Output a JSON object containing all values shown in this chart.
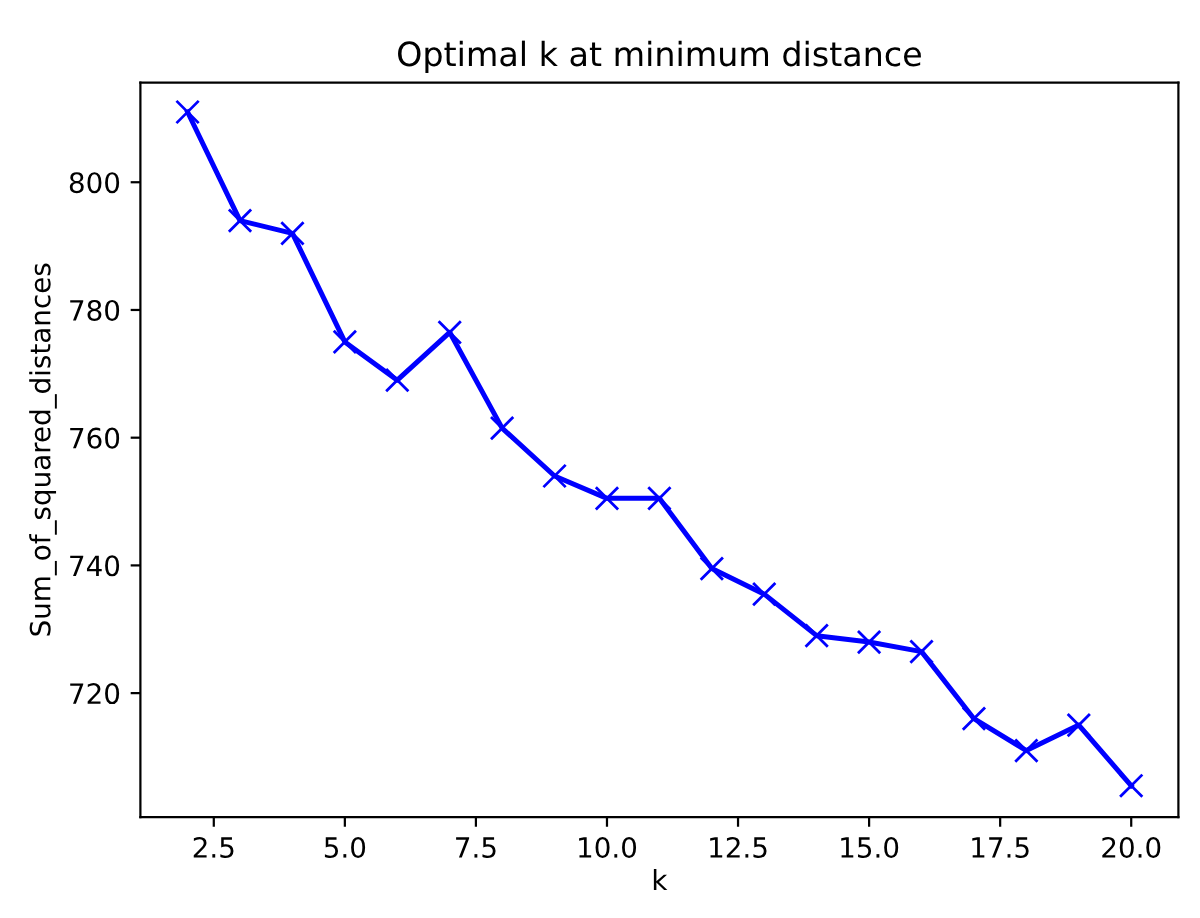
{
  "chart_data": {
    "type": "line",
    "title": "Optimal k at minimum distance",
    "xlabel": "k",
    "ylabel": "Sum_of_squared_distances",
    "x": [
      2,
      3,
      4,
      5,
      6,
      7,
      8,
      9,
      10,
      11,
      12,
      13,
      14,
      15,
      16,
      17,
      18,
      19,
      20
    ],
    "series": [
      {
        "color": "#0000ff",
        "values": [
          811,
          794,
          792,
          775,
          769,
          776.5,
          761.5,
          754,
          750.5,
          750.5,
          739.5,
          735.5,
          729,
          728,
          726.5,
          716,
          711,
          715,
          705.5
        ]
      }
    ],
    "marker": "cross",
    "line_style": "solid",
    "grid": false,
    "legend": false,
    "xlim": [
      1.1,
      20.9
    ],
    "ylim": [
      700.6,
      815.6
    ],
    "xticks": [
      2.5,
      {
        "value": 5,
        "label": "5.0"
      },
      7.5,
      {
        "value": 10,
        "label": "10.0"
      },
      12.5,
      {
        "value": 15,
        "label": "15.0"
      },
      17.5,
      {
        "value": 20,
        "label": "20.0"
      }
    ],
    "yticks": [
      720,
      740,
      760,
      780,
      800
    ]
  }
}
